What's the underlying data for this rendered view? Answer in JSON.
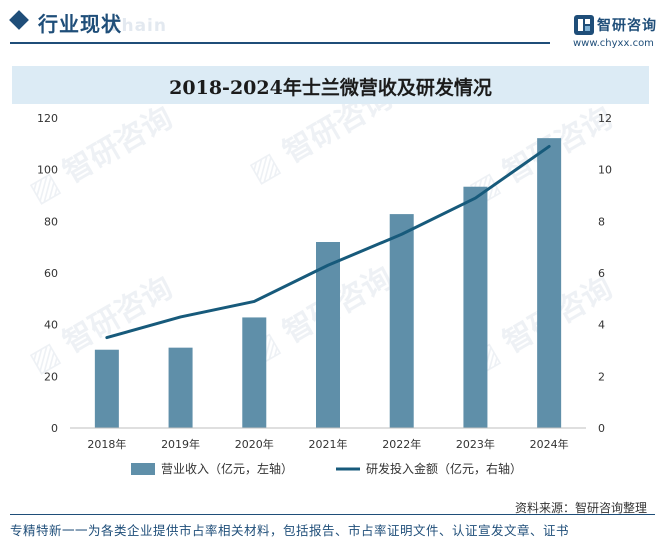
{
  "header": {
    "section_title": "行业现状",
    "section_subtitle": "Chain",
    "brand_name": "智研咨询",
    "brand_url": "www.chyxx.com"
  },
  "chart_data": {
    "type": "bar+line",
    "title": "2018-2024年士兰微营收及研发情况",
    "categories": [
      "2018年",
      "2019年",
      "2020年",
      "2021年",
      "2022年",
      "2023年",
      "2024年"
    ],
    "series": [
      {
        "name": "营业收入（亿元，左轴）",
        "type": "bar",
        "axis": "left",
        "values": [
          30.3,
          31.1,
          42.8,
          72.0,
          82.8,
          93.4,
          112.2
        ]
      },
      {
        "name": "研发投入金额（亿元，右轴）",
        "type": "line",
        "axis": "right",
        "values": [
          3.5,
          4.3,
          4.9,
          6.3,
          7.5,
          8.9,
          10.9
        ]
      }
    ],
    "y_left": {
      "min": 0,
      "max": 120,
      "ticks": [
        0,
        20,
        40,
        60,
        80,
        100,
        120
      ]
    },
    "y_right": {
      "min": 0,
      "max": 12,
      "ticks": [
        0,
        2,
        4,
        6,
        8,
        10,
        12
      ]
    },
    "colors": {
      "bar": "#5f8fa9",
      "line": "#175a7b"
    }
  },
  "source": "资料来源：智研咨询整理",
  "footer": {
    "text": "专精特新一一为各类企业提供市占率相关材料，包括报告、市占率证明文件、认证宣发文章、证书"
  }
}
